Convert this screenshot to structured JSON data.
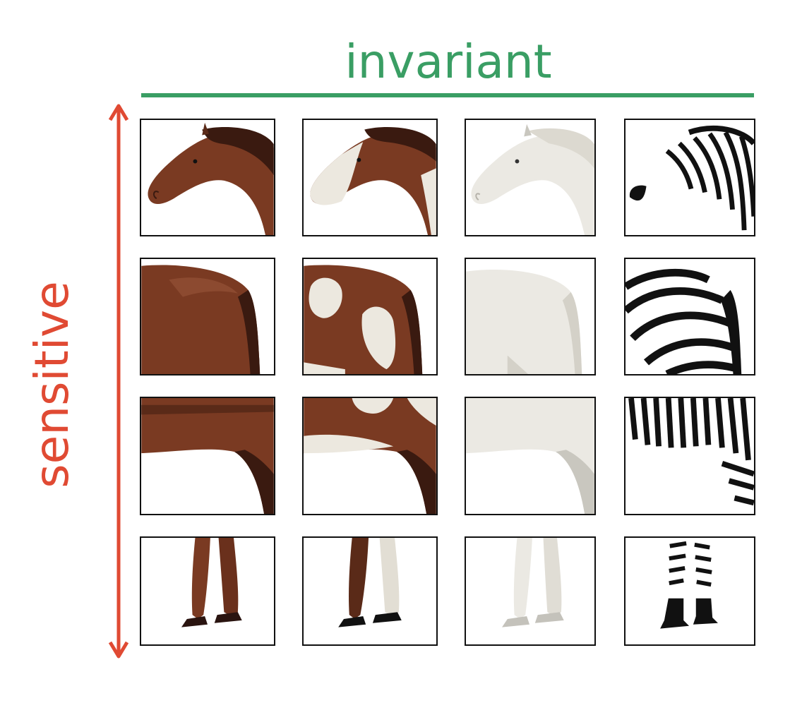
{
  "labels": {
    "horizontal_axis": "invariant",
    "vertical_axis": "sensitive"
  },
  "colors": {
    "invariant": "#3a9e64",
    "sensitive": "#e04a33",
    "bay_horse": "#7a3a22",
    "bay_horse_dark": "#3a1a10",
    "paint_horse_white": "#ece8df",
    "white_horse": "#ebe9e3",
    "white_horse_shade": "#c9c7bf",
    "zebra_stripe": "#111111"
  },
  "grid": {
    "columns": [
      "bay-horse",
      "paint-horse",
      "white-horse",
      "zebra"
    ],
    "rows": [
      "head",
      "shoulder",
      "belly",
      "legs"
    ]
  }
}
